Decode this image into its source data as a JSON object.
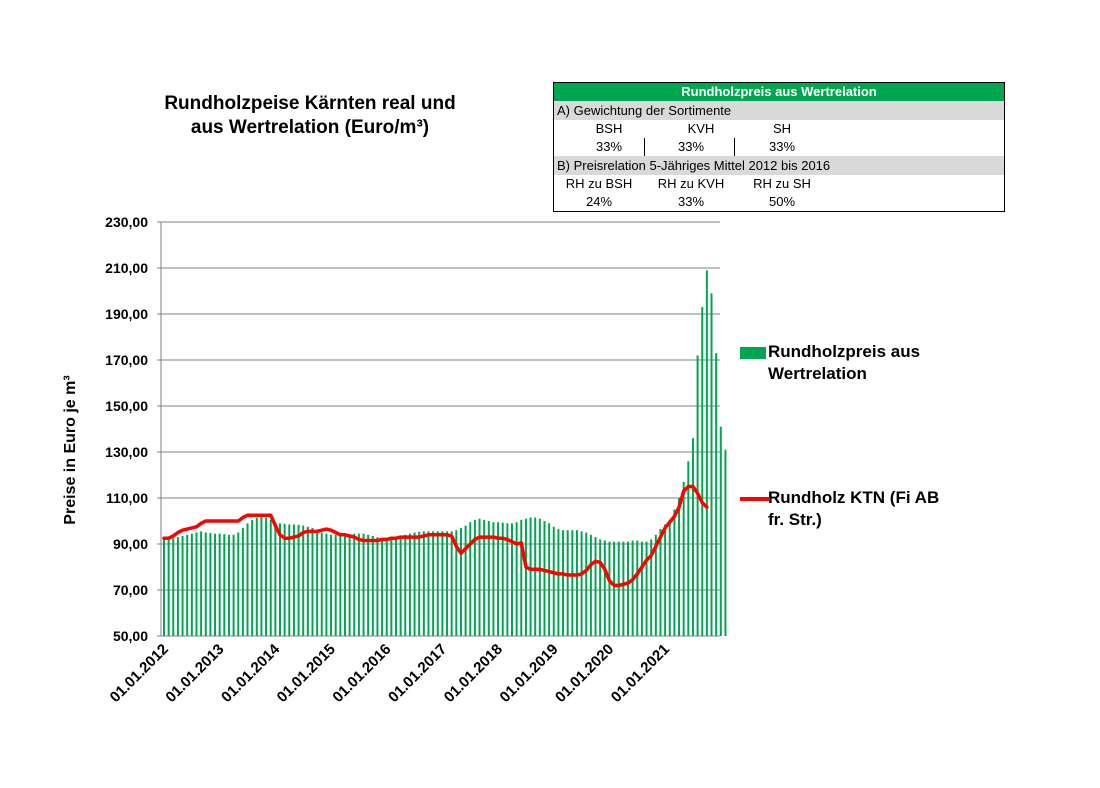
{
  "chart_data": {
    "type": "bar+line",
    "title_lines": [
      "Rundholzpeise Kärnten real  und",
      "aus Wertrelation  (Euro/m³)"
    ],
    "ylabel": "Preise in Euro je m³",
    "ylim": [
      50,
      230
    ],
    "y_ticks": [
      "230,00",
      "210,00",
      "190,00",
      "170,00",
      "150,00",
      "130,00",
      "110,00",
      "90,00",
      "70,00",
      "50,00"
    ],
    "x_tick_labels": [
      "01.01.2012",
      "01.01.2013",
      "01.01.2014",
      "01.01.2015",
      "01.01.2016",
      "01.01.2017",
      "01.01.2018",
      "01.01.2019",
      "01.01.2020",
      "01.01.2021"
    ],
    "grid": true,
    "legend_placement": "right",
    "x_start": "2012-01",
    "x_end": "2021-12",
    "series": [
      {
        "name": "Rundholzpreis aus Wertrelation",
        "type": "bar",
        "color": "#00a650",
        "values": [
          92.0,
          92.0,
          92.5,
          93.0,
          93.5,
          94.0,
          94.5,
          95.0,
          95.5,
          95.0,
          94.8,
          94.5,
          94.5,
          94.3,
          94.0,
          94.0,
          95.0,
          97.0,
          99.0,
          100.5,
          101.5,
          102.0,
          101.5,
          100.5,
          99.5,
          99.0,
          98.8,
          98.5,
          98.5,
          98.3,
          98.0,
          97.5,
          97.0,
          96.0,
          95.0,
          94.5,
          94.0,
          94.0,
          94.0,
          94.0,
          94.2,
          94.5,
          94.5,
          94.5,
          94.0,
          93.5,
          93.0,
          92.5,
          92.5,
          92.5,
          93.0,
          93.5,
          94.0,
          94.5,
          95.0,
          95.3,
          95.5,
          95.5,
          95.5,
          95.5,
          95.5,
          95.5,
          95.5,
          96.0,
          97.0,
          98.0,
          99.5,
          100.5,
          101.0,
          100.5,
          100.0,
          99.5,
          99.5,
          99.3,
          99.0,
          99.0,
          99.5,
          100.5,
          101.0,
          101.5,
          101.5,
          101.0,
          100.0,
          99.0,
          97.5,
          96.5,
          96.0,
          96.0,
          96.0,
          96.0,
          95.5,
          95.0,
          94.0,
          93.0,
          92.0,
          91.5,
          91.0,
          91.0,
          91.0,
          91.0,
          91.0,
          91.5,
          91.5,
          91.0,
          91.0,
          92.0,
          94.0,
          96.5,
          98.5,
          100.5,
          105.0,
          110.0,
          117.0,
          126.0,
          136.0,
          172.0,
          193.0,
          209.0,
          199.0,
          173.0,
          141.0,
          131.0
        ]
      },
      {
        "name": "Rundholz KTN (Fi AB fr. Str.)",
        "type": "line",
        "color": "#ff0000",
        "values": [
          92.5,
          92.5,
          93.5,
          95.0,
          96.0,
          96.5,
          97.0,
          97.5,
          99.0,
          100.0,
          100.0,
          100.0,
          100.0,
          100.0,
          100.0,
          100.0,
          100.0,
          101.5,
          102.5,
          102.5,
          102.5,
          102.5,
          102.5,
          102.5,
          98.0,
          94.0,
          92.5,
          92.5,
          93.0,
          93.5,
          95.0,
          95.5,
          95.5,
          95.5,
          96.0,
          96.5,
          96.0,
          95.0,
          94.0,
          94.0,
          93.5,
          93.0,
          92.0,
          91.5,
          91.5,
          91.5,
          91.5,
          92.0,
          92.0,
          92.5,
          92.5,
          93.0,
          93.0,
          93.0,
          93.0,
          93.0,
          93.5,
          94.0,
          94.0,
          94.0,
          94.0,
          94.0,
          93.5,
          89.0,
          86.0,
          88.0,
          90.0,
          92.0,
          93.0,
          93.0,
          93.0,
          93.0,
          92.5,
          92.5,
          92.0,
          91.0,
          90.0,
          90.5,
          80.0,
          79.0,
          79.0,
          79.0,
          78.5,
          78.0,
          77.5,
          77.0,
          77.0,
          76.5,
          76.5,
          76.5,
          77.0,
          78.5,
          81.0,
          82.5,
          82.0,
          79.0,
          74.0,
          72.0,
          72.0,
          72.5,
          73.0,
          74.5,
          77.0,
          80.0,
          83.0,
          85.0,
          89.0,
          93.0,
          97.0,
          99.5,
          102.0,
          106.0,
          113.0,
          115.0,
          115.0,
          112.0,
          108.0,
          106.0
        ]
      }
    ]
  },
  "info_table": {
    "title": "Rundholzpreis aus Wertrelation",
    "section_a": "A) Gewichtung der Sortimente",
    "a_headers": [
      "BSH",
      "KVH",
      "SH"
    ],
    "a_values": [
      "33%",
      "33%",
      "33%"
    ],
    "section_b": "B) Preisrelation 5-Jähriges Mittel 2012 bis 2016",
    "b_headers": [
      "RH zu BSH",
      "RH zu KVH",
      "RH zu SH"
    ],
    "b_values": [
      "24%",
      "33%",
      "50%"
    ]
  },
  "legend": {
    "bar_label_line1": "Rundholzpreis aus",
    "bar_label_line2": "Wertrelation",
    "line_label_line1": "Rundholz KTN (Fi AB",
    "line_label_line2": "fr. Str.)"
  },
  "colors": {
    "bar": "#00a650",
    "line": "#ff0000",
    "table_header": "#00a650",
    "section_bg": "#d9d9d9"
  }
}
